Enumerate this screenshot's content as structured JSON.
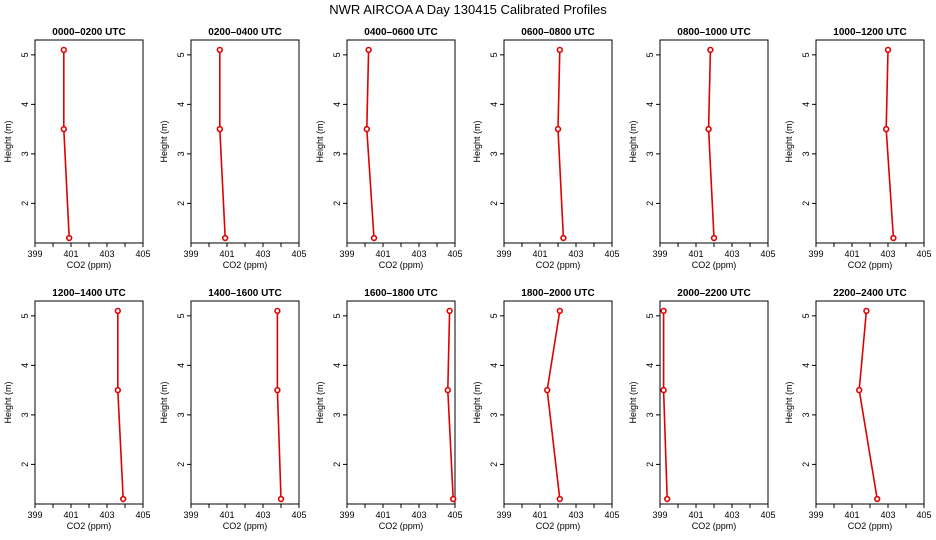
{
  "title": "NWR AIRCOA A  Day 130415  Calibrated Profiles",
  "colors": {
    "series": "#e00000",
    "point_fill": "#ffffff",
    "axes": "#000000"
  },
  "chart_data": [
    {
      "type": "line",
      "title": "0000–0200 UTC",
      "xlabel": "CO2 (ppm)",
      "ylabel": "Height (m)",
      "xlim": [
        399,
        405
      ],
      "ylim": [
        1.2,
        5.3
      ],
      "x_ticks": [
        399,
        401,
        403,
        405
      ],
      "y_ticks": [
        2,
        3,
        4,
        5
      ],
      "grid": false,
      "x": [
        400.9,
        400.6,
        400.6
      ],
      "y": [
        1.3,
        3.5,
        5.1
      ]
    },
    {
      "type": "line",
      "title": "0200–0400 UTC",
      "xlabel": "CO2 (ppm)",
      "ylabel": "Height (m)",
      "xlim": [
        399,
        405
      ],
      "ylim": [
        1.2,
        5.3
      ],
      "x_ticks": [
        399,
        401,
        403,
        405
      ],
      "y_ticks": [
        2,
        3,
        4,
        5
      ],
      "grid": false,
      "x": [
        400.9,
        400.6,
        400.6
      ],
      "y": [
        1.3,
        3.5,
        5.1
      ]
    },
    {
      "type": "line",
      "title": "0400–0600 UTC",
      "xlabel": "CO2 (ppm)",
      "ylabel": "Height (m)",
      "xlim": [
        399,
        405
      ],
      "ylim": [
        1.2,
        5.3
      ],
      "x_ticks": [
        399,
        401,
        403,
        405
      ],
      "y_ticks": [
        2,
        3,
        4,
        5
      ],
      "grid": false,
      "x": [
        400.5,
        400.1,
        400.2
      ],
      "y": [
        1.3,
        3.5,
        5.1
      ]
    },
    {
      "type": "line",
      "title": "0600–0800 UTC",
      "xlabel": "CO2 (ppm)",
      "ylabel": "Height (m)",
      "xlim": [
        399,
        405
      ],
      "ylim": [
        1.2,
        5.3
      ],
      "x_ticks": [
        399,
        401,
        403,
        405
      ],
      "y_ticks": [
        2,
        3,
        4,
        5
      ],
      "grid": false,
      "x": [
        402.3,
        402.0,
        402.1
      ],
      "y": [
        1.3,
        3.5,
        5.1
      ]
    },
    {
      "type": "line",
      "title": "0800–1000 UTC",
      "xlabel": "CO2 (ppm)",
      "ylabel": "Height (m)",
      "xlim": [
        399,
        405
      ],
      "ylim": [
        1.2,
        5.3
      ],
      "x_ticks": [
        399,
        401,
        403,
        405
      ],
      "y_ticks": [
        2,
        3,
        4,
        5
      ],
      "grid": false,
      "x": [
        402.0,
        401.7,
        401.8
      ],
      "y": [
        1.3,
        3.5,
        5.1
      ]
    },
    {
      "type": "line",
      "title": "1000–1200 UTC",
      "xlabel": "CO2 (ppm)",
      "ylabel": "Height (m)",
      "xlim": [
        399,
        405
      ],
      "ylim": [
        1.2,
        5.3
      ],
      "x_ticks": [
        399,
        401,
        403,
        405
      ],
      "y_ticks": [
        2,
        3,
        4,
        5
      ],
      "grid": false,
      "x": [
        403.3,
        402.9,
        403.0
      ],
      "y": [
        1.3,
        3.5,
        5.1
      ]
    },
    {
      "type": "line",
      "title": "1200–1400 UTC",
      "xlabel": "CO2 (ppm)",
      "ylabel": "Height (m)",
      "xlim": [
        399,
        405
      ],
      "ylim": [
        1.2,
        5.3
      ],
      "x_ticks": [
        399,
        401,
        403,
        405
      ],
      "y_ticks": [
        2,
        3,
        4,
        5
      ],
      "grid": false,
      "x": [
        403.9,
        403.6,
        403.6
      ],
      "y": [
        1.3,
        3.5,
        5.1
      ]
    },
    {
      "type": "line",
      "title": "1400–1600 UTC",
      "xlabel": "CO2 (ppm)",
      "ylabel": "Height (m)",
      "xlim": [
        399,
        405
      ],
      "ylim": [
        1.2,
        5.3
      ],
      "x_ticks": [
        399,
        401,
        403,
        405
      ],
      "y_ticks": [
        2,
        3,
        4,
        5
      ],
      "grid": false,
      "x": [
        404.0,
        403.8,
        403.8
      ],
      "y": [
        1.3,
        3.5,
        5.1
      ]
    },
    {
      "type": "line",
      "title": "1600–1800 UTC",
      "xlabel": "CO2 (ppm)",
      "ylabel": "Height (m)",
      "xlim": [
        399,
        405
      ],
      "ylim": [
        1.2,
        5.3
      ],
      "x_ticks": [
        399,
        401,
        403,
        405
      ],
      "y_ticks": [
        2,
        3,
        4,
        5
      ],
      "grid": false,
      "x": [
        404.9,
        404.6,
        404.7
      ],
      "y": [
        1.3,
        3.5,
        5.1
      ]
    },
    {
      "type": "line",
      "title": "1800–2000 UTC",
      "xlabel": "CO2 (ppm)",
      "ylabel": "Height (m)",
      "xlim": [
        399,
        405
      ],
      "ylim": [
        1.2,
        5.3
      ],
      "x_ticks": [
        399,
        401,
        403,
        405
      ],
      "y_ticks": [
        2,
        3,
        4,
        5
      ],
      "grid": false,
      "x": [
        402.1,
        401.4,
        402.1
      ],
      "y": [
        1.3,
        3.5,
        5.1
      ]
    },
    {
      "type": "line",
      "title": "2000–2200 UTC",
      "xlabel": "CO2 (ppm)",
      "ylabel": "Height (m)",
      "xlim": [
        399,
        405
      ],
      "ylim": [
        1.2,
        5.3
      ],
      "x_ticks": [
        399,
        401,
        403,
        405
      ],
      "y_ticks": [
        2,
        3,
        4,
        5
      ],
      "grid": false,
      "x": [
        399.4,
        399.2,
        399.2
      ],
      "y": [
        1.3,
        3.5,
        5.1
      ]
    },
    {
      "type": "line",
      "title": "2200–2400 UTC",
      "xlabel": "CO2 (ppm)",
      "ylabel": "Height (m)",
      "xlim": [
        399,
        405
      ],
      "ylim": [
        1.2,
        5.3
      ],
      "x_ticks": [
        399,
        401,
        403,
        405
      ],
      "y_ticks": [
        2,
        3,
        4,
        5
      ],
      "grid": false,
      "x": [
        402.4,
        401.4,
        401.8
      ],
      "y": [
        1.3,
        3.5,
        5.1
      ]
    }
  ]
}
